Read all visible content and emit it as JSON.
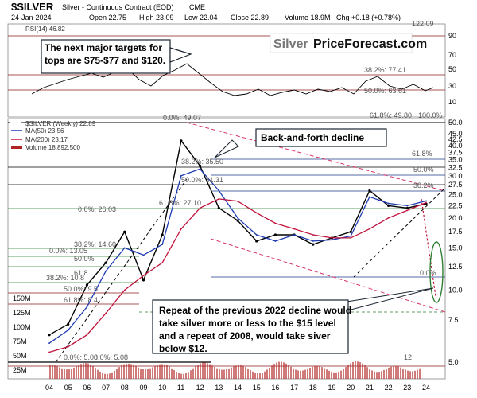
{
  "header": {
    "symbol": "$SILVER",
    "name": "Silver - Continuous Contract (EOD)",
    "exchange": "CME",
    "date": "24-Jan-2024",
    "stats": {
      "open": "Open 22.75",
      "high": "High 23.09",
      "low": "Low 22.04",
      "close": "Close 22.89",
      "volume": "Volume 18.9M",
      "chg": "Chg +0.18 (+0.78%)"
    }
  },
  "watermark": {
    "part1": "Silver",
    "part2": "PriceForecast.com"
  },
  "rsi": {
    "label": "RSI(14) 46.82",
    "ticks": [
      "90",
      "70",
      "50",
      "30",
      "10"
    ],
    "levels": [
      "38.2%: 77.41",
      "50.0%: 63.61",
      "61.8%: 49.80",
      "100.0%"
    ],
    "top_level": "122.09"
  },
  "main_legend": {
    "title": "$SILVER (Weekly) 22.89",
    "ma50": "MA(50) 23.56",
    "ma200": "MA(200) 23.17",
    "volume": "Volume 18,892,500"
  },
  "price_ticks": [
    "50.0",
    "45.0",
    "42.5",
    "40.0",
    "37.5",
    "35.0",
    "32.5",
    "30.0",
    "27.5",
    "25.0",
    "22.5",
    "20.0",
    "17.5",
    "15.0",
    "12.5",
    "10.0",
    "7.5",
    "5.0"
  ],
  "volume_ticks": [
    "150M",
    "125M",
    "100M",
    "75M",
    "50M",
    "25M"
  ],
  "x_ticks": [
    "04",
    "05",
    "06",
    "07",
    "08",
    "09",
    "10",
    "11",
    "12",
    "13",
    "14",
    "15",
    "16",
    "17",
    "18",
    "19",
    "20",
    "21",
    "22",
    "23",
    "24"
  ],
  "fib_labels": {
    "top_left": "0.0%: 49.07",
    "a382": "38.2%: 35.50",
    "a500": "50.0%: 31.31",
    "a618": "61.8%: 27.10",
    "b000": "0.0%: 26.03",
    "c382": "38.2%: 14.60",
    "c000": "0.0%: 13.05",
    "c500": "50.0%",
    "d382": "38.2%: 10.8",
    "d618": "61.8",
    "d000": "50.0%: 9.5",
    "d618b": "61.8%: 8.4",
    "e000": "0.0%: 5.08",
    "e000b": "0.0%: 5.08",
    "vol_label": "12",
    "r618": "61.8%",
    "r500": "50.0%",
    "r382": "38.2%",
    "r000": "0.0%"
  },
  "annotations": {
    "targets": "The next major targets for tops are $75-$77 and $120.",
    "decline": "Back-and-forth decline",
    "repeat_lines": [
      "Repeat of the previous 2022 decline would",
      "take silver more or less to the $15 level",
      "and a repeat of 2008, would take siver",
      "below $12."
    ]
  },
  "colors": {
    "price": "#000000",
    "ma50": "#1f3bb3",
    "ma200": "#c0143c",
    "volume": "#b22222",
    "fib_black": "#000000",
    "fib_blue": "#1e3a8a",
    "fib_green": "#2e7d32",
    "fib_red": "#8b1a1a",
    "trend_pink": "#d6336c",
    "annotation_bg": "#1c2533",
    "oval": "#2e7d32"
  },
  "chart_data": {
    "type": "line",
    "title": "$SILVER Silver - Continuous Contract (EOD) CME",
    "x": [
      "04",
      "05",
      "06",
      "07",
      "08",
      "09",
      "10",
      "11",
      "12",
      "13",
      "14",
      "15",
      "16",
      "17",
      "18",
      "19",
      "20",
      "21",
      "22",
      "23",
      "24"
    ],
    "ylim": [
      5,
      50
    ],
    "yscale": "log",
    "series": [
      {
        "name": "$SILVER (Weekly)",
        "values": [
          6.5,
          7.2,
          10.5,
          13.0,
          17.5,
          11.0,
          17.0,
          42.0,
          33.0,
          22.0,
          19.5,
          16.0,
          17.0,
          17.0,
          15.5,
          16.5,
          17.5,
          26.0,
          22.5,
          22.0,
          22.89
        ]
      },
      {
        "name": "MA(50)",
        "values": [
          6.0,
          6.8,
          8.5,
          12.0,
          15.0,
          14.0,
          15.5,
          30.0,
          32.0,
          26.0,
          20.0,
          17.0,
          16.0,
          17.0,
          16.0,
          16.2,
          16.8,
          24.5,
          23.0,
          22.5,
          23.56
        ]
      },
      {
        "name": "MA(200)",
        "values": [
          5.5,
          5.8,
          6.5,
          8.0,
          10.0,
          11.5,
          13.0,
          18.0,
          22.0,
          24.0,
          23.5,
          21.0,
          19.0,
          18.0,
          17.0,
          16.5,
          16.5,
          18.0,
          20.0,
          21.5,
          23.17
        ]
      }
    ]
  }
}
